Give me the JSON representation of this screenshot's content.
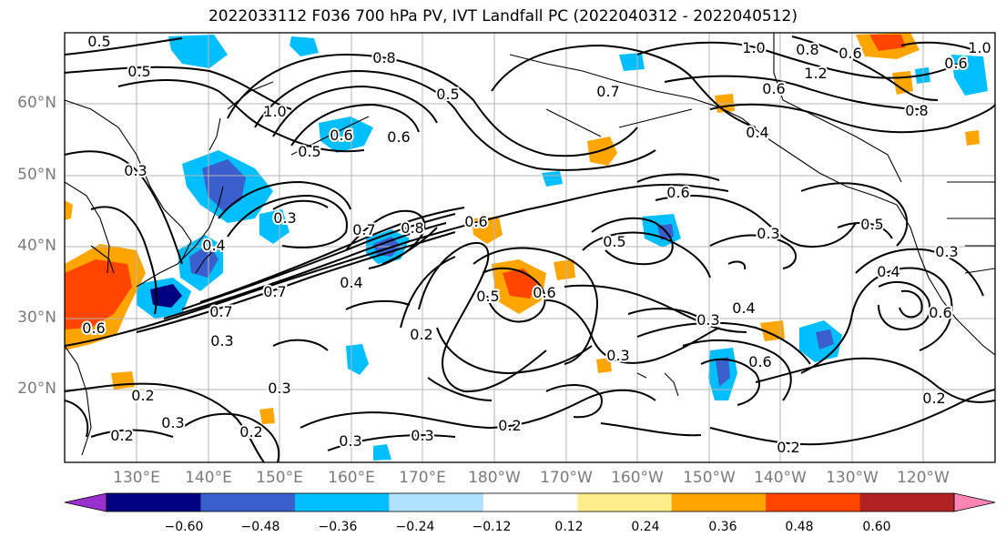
{
  "title": "2022033112 F036 700 hPa PV, IVT Landfall PC (2022040312 - 2022040512)",
  "lat_labels": [
    "60°N",
    "50°N",
    "40°N",
    "30°N",
    "20°N"
  ],
  "lon_labels": [
    "130°E",
    "140°E",
    "150°E",
    "160°E",
    "170°E",
    "180°W",
    "170°W",
    "160°W",
    "150°W",
    "140°W",
    "130°W",
    "120°W"
  ],
  "colorbar": {
    "ticks": [
      "−0.60",
      "−0.48",
      "−0.36",
      "−0.24",
      "−0.12",
      "0.12",
      "0.24",
      "0.36",
      "0.48",
      "0.60"
    ],
    "colors": [
      "#9b30d0",
      "#000080",
      "#3a5fcd",
      "#00bfff",
      "#b0e2ff",
      "#ffffff",
      "#ffec8b",
      "#ffa500",
      "#ff4500",
      "#b22222",
      "#ff85b4"
    ]
  },
  "contour_labels": [
    "0.5",
    "0.5",
    "0.8",
    "1.0",
    "0.8",
    "0.6",
    "1.2",
    "1.0",
    "0.5",
    "0.7",
    "0.6",
    "0.4",
    "0.8",
    "1.0",
    "0.6",
    "0.5",
    "0.3",
    "0.3",
    "0.6",
    "0.3",
    "0.4",
    "0.7",
    "0.8",
    "0.6",
    "0.4",
    "0.7",
    "0.6",
    "0.5",
    "0.6",
    "0.5",
    "0.3",
    "0.5",
    "0.4",
    "0.3",
    "0.7",
    "0.3",
    "0.2",
    "0.3",
    "0.4",
    "0.6",
    "0.6",
    "0.2",
    "0.2",
    "0.3",
    "0.3",
    "0.2",
    "0.3",
    "0.2",
    "0.3",
    "0.2",
    "0.2",
    "0.6",
    "0.6"
  ]
}
